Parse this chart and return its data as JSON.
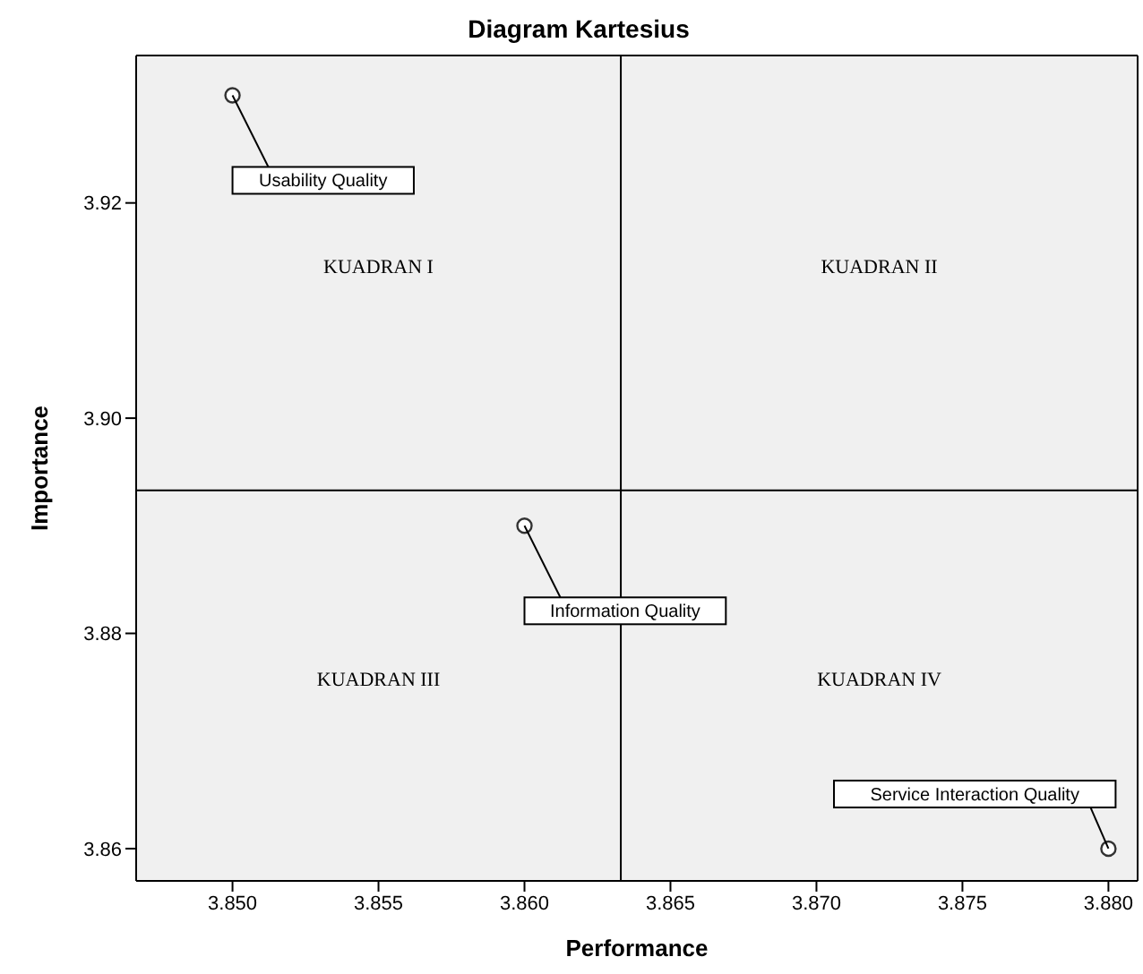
{
  "chart_data": {
    "type": "scatter",
    "title": "Diagram Kartesius",
    "xlabel": "Performance",
    "ylabel": "Importance",
    "x": [
      3.85,
      3.86,
      3.88
    ],
    "series": [
      {
        "color": "#333333",
        "values": [
          3.93,
          3.89,
          3.86
        ]
      }
    ],
    "marker": "circle",
    "xlim": [
      3.8467,
      3.881
    ],
    "ylim": [
      3.857,
      3.9337
    ],
    "xticks": [
      {
        "value": 3.85,
        "label": "3.850"
      },
      {
        "value": 3.855,
        "label": "3.855"
      },
      {
        "value": 3.86,
        "label": "3.860"
      },
      {
        "value": 3.865,
        "label": "3.865"
      },
      {
        "value": 3.87,
        "label": "3.870"
      },
      {
        "value": 3.875,
        "label": "3.875"
      },
      {
        "value": 3.88,
        "label": "3.880"
      }
    ],
    "yticks": [
      3.86,
      3.88,
      {
        "value": 3.9,
        "label": "3.90"
      },
      3.92
    ],
    "ref_lines": [
      {
        "axis": "x",
        "value": 3.8633,
        "color": "#000000"
      },
      {
        "axis": "y",
        "value": 3.8933,
        "color": "#000000"
      }
    ],
    "annotations": [
      "KUADRAN I",
      "KUADRAN II",
      "KUADRAN III",
      "KUADRAN IV",
      {
        "text": "Usability Quality",
        "x": 3.85,
        "y": 3.93
      },
      {
        "text": "Information Quality",
        "x": 3.86,
        "y": 3.89
      },
      {
        "text": "Service Interaction Quality",
        "x": 3.88,
        "y": 3.86
      }
    ],
    "legend": false
  }
}
